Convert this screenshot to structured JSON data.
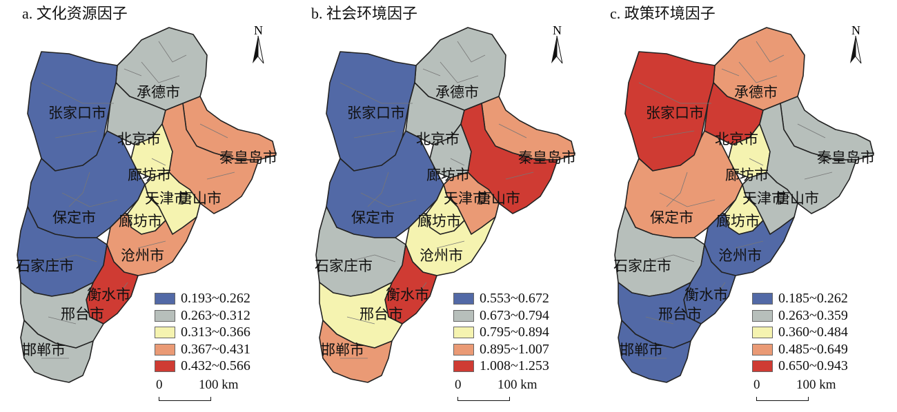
{
  "colors": {
    "c1": "#5269a6",
    "c2": "#b7bfbb",
    "c3": "#f5f3b0",
    "c4": "#ea9a75",
    "c5": "#cf3b33",
    "boundary": "#222222",
    "county": "#777777"
  },
  "north_label": "N",
  "scale": {
    "zero": "0",
    "distance": "100 km"
  },
  "panels": [
    {
      "title": "a. 文化资源因子",
      "legend": [
        "0.193~0.262",
        "0.263~0.312",
        "0.313~0.366",
        "0.367~0.431",
        "0.432~0.566"
      ],
      "cities": {
        "chengde": {
          "name": "承德市",
          "class": 2
        },
        "zhangjiakou": {
          "name": "张家口市",
          "class": 1
        },
        "beijing": {
          "name": "北京市",
          "class": 2
        },
        "qinhuangdao": {
          "name": "秦皇岛市",
          "class": 4
        },
        "langfang_n": {
          "name": "廊坊市",
          "class": 3
        },
        "tianjin": {
          "name": "天津市",
          "class": 3
        },
        "tangshan": {
          "name": "唐山市",
          "class": 4
        },
        "baoding": {
          "name": "保定市",
          "class": 1
        },
        "langfang_s": {
          "name": "廊坊市",
          "class": 3
        },
        "cangzhou": {
          "name": "沧州市",
          "class": 4
        },
        "shijiazhuang": {
          "name": "石家庄市",
          "class": 1
        },
        "hengshui": {
          "name": "衡水市",
          "class": 5
        },
        "xingtai": {
          "name": "邢台市",
          "class": 2
        },
        "handan": {
          "name": "邯郸市",
          "class": 2
        }
      }
    },
    {
      "title": "b. 社会环境因子",
      "legend": [
        "0.553~0.672",
        "0.673~0.794",
        "0.795~0.894",
        "0.895~1.007",
        "1.008~1.253"
      ],
      "cities": {
        "chengde": {
          "name": "承德市",
          "class": 2
        },
        "zhangjiakou": {
          "name": "张家口市",
          "class": 1
        },
        "beijing": {
          "name": "北京市",
          "class": 2
        },
        "qinhuangdao": {
          "name": "秦皇岛市",
          "class": 4
        },
        "langfang_n": {
          "name": "廊坊市",
          "class": 2
        },
        "tianjin": {
          "name": "天津市",
          "class": 4
        },
        "tangshan": {
          "name": "唐山市",
          "class": 5
        },
        "baoding": {
          "name": "保定市",
          "class": 1
        },
        "langfang_s": {
          "name": "廊坊市",
          "class": 3
        },
        "cangzhou": {
          "name": "沧州市",
          "class": 3
        },
        "shijiazhuang": {
          "name": "石家庄市",
          "class": 2
        },
        "hengshui": {
          "name": "衡水市",
          "class": 5
        },
        "xingtai": {
          "name": "邢台市",
          "class": 3
        },
        "handan": {
          "name": "邯郸市",
          "class": 4
        }
      }
    },
    {
      "title": "c. 政策环境因子",
      "legend": [
        "0.185~0.262",
        "0.263~0.359",
        "0.360~0.484",
        "0.485~0.649",
        "0.650~0.943"
      ],
      "cities": {
        "chengde": {
          "name": "承德市",
          "class": 4
        },
        "zhangjiakou": {
          "name": "张家口市",
          "class": 5
        },
        "beijing": {
          "name": "北京市",
          "class": 5
        },
        "qinhuangdao": {
          "name": "秦皇岛市",
          "class": 2
        },
        "langfang_n": {
          "name": "廊坊市",
          "class": 3
        },
        "tianjin": {
          "name": "天津市",
          "class": 2
        },
        "tangshan": {
          "name": "唐山市",
          "class": 2
        },
        "baoding": {
          "name": "保定市",
          "class": 4
        },
        "langfang_s": {
          "name": "廊坊市",
          "class": 3
        },
        "cangzhou": {
          "name": "沧州市",
          "class": 1
        },
        "shijiazhuang": {
          "name": "石家庄市",
          "class": 2
        },
        "hengshui": {
          "name": "衡水市",
          "class": 1
        },
        "xingtai": {
          "name": "邢台市",
          "class": 1
        },
        "handan": {
          "name": "邯郸市",
          "class": 1
        }
      }
    }
  ]
}
